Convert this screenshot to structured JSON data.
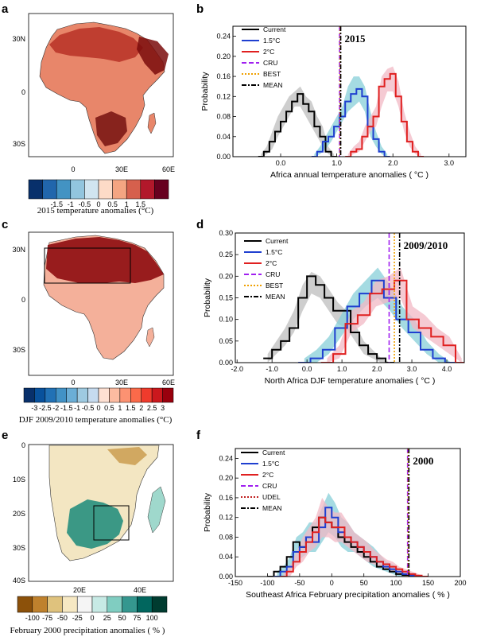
{
  "panels": [
    {
      "letter": "a",
      "lat_ticks": [
        "30N",
        "0",
        "30S"
      ],
      "lon_ticks": [
        "0",
        "30E",
        "60E"
      ],
      "colorbar_ticks": [
        "-1.5",
        "-1",
        "-0.5",
        "0",
        "0.5",
        "1",
        "1.5"
      ],
      "colors": [
        "#08306b",
        "#2166ac",
        "#4393c3",
        "#92c5de",
        "#d1e5f0",
        "#fddbc7",
        "#f4a582",
        "#d6604d",
        "#b2182b",
        "#67001f"
      ],
      "caption": "2015 temperature anomalies (°C)",
      "show_box": false
    },
    {
      "letter": "c",
      "lat_ticks": [
        "30N",
        "0",
        "30S"
      ],
      "lon_ticks": [
        "0",
        "30E",
        "60E"
      ],
      "colorbar_ticks": [
        "-3",
        "-2.5",
        "-2",
        "-1.5",
        "-1",
        "-0.5",
        "0",
        "0.5",
        "1",
        "1.5",
        "2",
        "2.5",
        "3"
      ],
      "colors": [
        "#08306b",
        "#08519c",
        "#2171b5",
        "#4292c6",
        "#6baed6",
        "#9ecae1",
        "#c6dbef",
        "#fee0d2",
        "#fcbba1",
        "#fc9272",
        "#fb6a4a",
        "#ef3b2c",
        "#cb181d",
        "#99000d"
      ],
      "caption": "DJF 2009/2010 temperature anomalies (°C)",
      "show_box": true
    },
    {
      "letter": "e",
      "lat_ticks": [
        "0",
        "10S",
        "20S",
        "30S",
        "40S"
      ],
      "lon_ticks": [
        "20E",
        "40E"
      ],
      "colorbar_ticks": [
        "-100",
        "-75",
        "-50",
        "-25",
        "0",
        "25",
        "50",
        "75",
        "100"
      ],
      "colors": [
        "#8c510a",
        "#bf812d",
        "#dfc27d",
        "#f6e8c3",
        "#f5f5f5",
        "#c7eae5",
        "#80cdc1",
        "#35978f",
        "#01665e",
        "#003c30"
      ],
      "caption": "February 2000 precipitation anomalies ( % )",
      "show_box": true
    }
  ],
  "chart_data": [
    {
      "type": "line",
      "letter": "b",
      "year_label": "2015",
      "ylabel": "Probability",
      "xlabel": "Africa annual temperature anomalies ( °C )",
      "x_ticks": [
        "0.0",
        "1.0",
        "2.0",
        "3.0"
      ],
      "x_tick_values": [
        0,
        1,
        2,
        3
      ],
      "y_ticks": [
        "0.00",
        "0.04",
        "0.08",
        "0.12",
        "0.16",
        "0.20",
        "0.24"
      ],
      "y_tick_values": [
        0,
        0.04,
        0.08,
        0.12,
        0.16,
        0.2,
        0.24
      ],
      "xlim": [
        -0.85,
        3.3
      ],
      "ylim": [
        0,
        0.26
      ],
      "legend": [
        {
          "name": "Current",
          "color": "#000000",
          "dash": "solid"
        },
        {
          "name": "1.5°C",
          "color": "#1f3fd0",
          "dash": "solid"
        },
        {
          "name": "2°C",
          "color": "#e02020",
          "dash": "solid"
        },
        {
          "name": "CRU",
          "color": "#a020f0",
          "dash": "dash"
        },
        {
          "name": "BEST",
          "color": "#f0a000",
          "dash": "dot"
        },
        {
          "name": "MEAN",
          "color": "#000000",
          "dash": "dashdot"
        }
      ],
      "obs_lines": [
        1.05,
        1.06,
        1.07
      ],
      "series": [
        {
          "name": "Current",
          "color": "#000000",
          "x_start": -0.4,
          "bin": 0.1,
          "values": [
            0,
            0.01,
            0.03,
            0.05,
            0.07,
            0.09,
            0.11,
            0.125,
            0.105,
            0.09,
            0.06,
            0.04,
            0.01,
            0
          ]
        },
        {
          "name": "1.5°C",
          "color": "#1f3fd0",
          "x_start": 0.55,
          "bin": 0.1,
          "values": [
            0,
            0.01,
            0.03,
            0.04,
            0.06,
            0.08,
            0.11,
            0.125,
            0.135,
            0.12,
            0.06,
            0.035,
            0.01,
            0
          ]
        },
        {
          "name": "2°C",
          "color": "#e02020",
          "x_start": 1.15,
          "bin": 0.1,
          "values": [
            0,
            0.01,
            0.015,
            0.04,
            0.06,
            0.08,
            0.14,
            0.155,
            0.165,
            0.12,
            0.07,
            0.03,
            0.01,
            0
          ]
        }
      ],
      "shades": [
        {
          "color": "#bdbdbd",
          "x_start": -0.4,
          "bin": 0.1,
          "lo": [
            0,
            0.005,
            0.015,
            0.04,
            0.06,
            0.08,
            0.1,
            0.1,
            0.08,
            0.06,
            0.04,
            0.02,
            0.005,
            0
          ],
          "hi": [
            0.005,
            0.02,
            0.05,
            0.08,
            0.1,
            0.12,
            0.13,
            0.14,
            0.12,
            0.11,
            0.08,
            0.06,
            0.02,
            0.005
          ]
        },
        {
          "color": "#87cfd8",
          "x_start": 0.55,
          "bin": 0.1,
          "lo": [
            0,
            0.005,
            0.015,
            0.03,
            0.05,
            0.07,
            0.09,
            0.1,
            0.11,
            0.09,
            0.04,
            0.02,
            0.005,
            0
          ],
          "hi": [
            0.005,
            0.02,
            0.04,
            0.06,
            0.08,
            0.1,
            0.14,
            0.16,
            0.16,
            0.14,
            0.09,
            0.05,
            0.02,
            0.005
          ]
        },
        {
          "color": "#f2b8c4",
          "x_start": 1.15,
          "bin": 0.1,
          "lo": [
            0,
            0.005,
            0.01,
            0.03,
            0.05,
            0.06,
            0.1,
            0.13,
            0.13,
            0.1,
            0.05,
            0.02,
            0.005,
            0
          ],
          "hi": [
            0.005,
            0.02,
            0.03,
            0.06,
            0.08,
            0.1,
            0.16,
            0.175,
            0.18,
            0.15,
            0.09,
            0.05,
            0.02,
            0.005
          ]
        }
      ]
    },
    {
      "type": "line",
      "letter": "d",
      "year_label": "2009/2010",
      "ylabel": "Probability",
      "xlabel": "North Africa DJF temperature anomalies ( °C )",
      "x_ticks": [
        "-2.0",
        "-1.0",
        "0.0",
        "1.0",
        "2.0",
        "3.0",
        "4.0"
      ],
      "x_tick_values": [
        -2,
        -1,
        0,
        1,
        2,
        3,
        4
      ],
      "y_ticks": [
        "0.00",
        "0.05",
        "0.10",
        "0.15",
        "0.20",
        "0.25",
        "0.30"
      ],
      "y_tick_values": [
        0,
        0.05,
        0.1,
        0.15,
        0.2,
        0.25,
        0.3
      ],
      "xlim": [
        -2.05,
        4.5
      ],
      "ylim": [
        0,
        0.3
      ],
      "legend": [
        {
          "name": "Current",
          "color": "#000000",
          "dash": "solid"
        },
        {
          "name": "1.5°C",
          "color": "#1f3fd0",
          "dash": "solid"
        },
        {
          "name": "2°C",
          "color": "#e02020",
          "dash": "solid"
        },
        {
          "name": "CRU",
          "color": "#a020f0",
          "dash": "dash"
        },
        {
          "name": "BEST",
          "color": "#f0a000",
          "dash": "dot"
        },
        {
          "name": "MEAN",
          "color": "#000000",
          "dash": "dashdot"
        }
      ],
      "obs_lines": [
        2.35,
        2.5,
        2.65
      ],
      "series": [
        {
          "name": "Current",
          "color": "#000000",
          "x_start": -1.25,
          "bin": 0.25,
          "values": [
            0.01,
            0.03,
            0.05,
            0.08,
            0.15,
            0.2,
            0.18,
            0.15,
            0.12,
            0.12,
            0.07,
            0.04,
            0.02,
            0.01,
            0
          ]
        },
        {
          "name": "1.5°C",
          "color": "#1f3fd0",
          "x_start": -0.25,
          "bin": 0.35,
          "values": [
            0,
            0.01,
            0.03,
            0.08,
            0.13,
            0.16,
            0.19,
            0.15,
            0.1,
            0.07,
            0.03,
            0.01,
            0
          ]
        },
        {
          "name": "2°C",
          "color": "#e02020",
          "x_start": 0.4,
          "bin": 0.35,
          "values": [
            0,
            0.02,
            0.09,
            0.11,
            0.16,
            0.17,
            0.19,
            0.1,
            0.08,
            0.06,
            0.04,
            0
          ]
        }
      ],
      "shades": [
        {
          "color": "#bdbdbd",
          "x_start": -1.25,
          "bin": 0.25,
          "lo": [
            0,
            0.02,
            0.04,
            0.07,
            0.12,
            0.16,
            0.15,
            0.12,
            0.09,
            0.08,
            0.05,
            0.02,
            0.01,
            0,
            0
          ],
          "hi": [
            0.02,
            0.05,
            0.08,
            0.12,
            0.18,
            0.21,
            0.2,
            0.17,
            0.14,
            0.12,
            0.09,
            0.05,
            0.03,
            0.01,
            0
          ]
        },
        {
          "color": "#87cfd8",
          "x_start": -0.25,
          "bin": 0.35,
          "lo": [
            0,
            0,
            0.02,
            0.06,
            0.1,
            0.13,
            0.15,
            0.12,
            0.08,
            0.05,
            0.02,
            0,
            0
          ],
          "hi": [
            0.01,
            0.03,
            0.06,
            0.11,
            0.16,
            0.19,
            0.22,
            0.18,
            0.13,
            0.1,
            0.05,
            0.02,
            0
          ]
        },
        {
          "color": "#f2b8c4",
          "x_start": 0.4,
          "bin": 0.35,
          "lo": [
            0,
            0.01,
            0.07,
            0.09,
            0.13,
            0.14,
            0.15,
            0.08,
            0.06,
            0.04,
            0.02,
            0
          ],
          "hi": [
            0.01,
            0.04,
            0.12,
            0.14,
            0.19,
            0.2,
            0.22,
            0.13,
            0.11,
            0.08,
            0.06,
            0.01
          ]
        }
      ]
    },
    {
      "type": "line",
      "letter": "f",
      "year_label": "2000",
      "ylabel": "Probability",
      "xlabel": "Southeast Africa February precipitation anomalies ( % )",
      "x_ticks": [
        "-150",
        "-100",
        "-50",
        "0",
        "50",
        "100",
        "150",
        "200"
      ],
      "x_tick_values": [
        -150,
        -100,
        -50,
        0,
        50,
        100,
        150,
        200
      ],
      "y_ticks": [
        "0.00",
        "0.04",
        "0.08",
        "0.12",
        "0.16",
        "0.20",
        "0.24"
      ],
      "y_tick_values": [
        0,
        0.04,
        0.08,
        0.12,
        0.16,
        0.2,
        0.24
      ],
      "xlim": [
        -150,
        200
      ],
      "ylim": [
        0,
        0.26
      ],
      "legend": [
        {
          "name": "Current",
          "color": "#000000",
          "dash": "solid"
        },
        {
          "name": "1.5°C",
          "color": "#1f3fd0",
          "dash": "solid"
        },
        {
          "name": "2°C",
          "color": "#e02020",
          "dash": "solid"
        },
        {
          "name": "CRU",
          "color": "#a020f0",
          "dash": "dash"
        },
        {
          "name": "UDEL",
          "color": "#c02020",
          "dash": "dot"
        },
        {
          "name": "MEAN",
          "color": "#000000",
          "dash": "dashdot"
        }
      ],
      "obs_lines": [
        118,
        119,
        120
      ],
      "series": [
        {
          "name": "Current",
          "color": "#000000",
          "x_start": -100,
          "bin": 10,
          "values": [
            0,
            0.01,
            0.02,
            0.04,
            0.07,
            0.06,
            0.08,
            0.1,
            0.12,
            0.11,
            0.1,
            0.08,
            0.07,
            0.06,
            0.05,
            0.04,
            0.03,
            0.02,
            0.015,
            0.01,
            0.005,
            0.003,
            0.002,
            0
          ]
        },
        {
          "name": "1.5°C",
          "color": "#1f3fd0",
          "x_start": -90,
          "bin": 10,
          "values": [
            0,
            0.01,
            0.02,
            0.05,
            0.06,
            0.08,
            0.07,
            0.1,
            0.14,
            0.12,
            0.09,
            0.08,
            0.07,
            0.06,
            0.05,
            0.04,
            0.03,
            0.02,
            0.015,
            0.01,
            0.005,
            0.002,
            0
          ]
        },
        {
          "name": "2°C",
          "color": "#e02020",
          "x_start": -80,
          "bin": 10,
          "values": [
            0,
            0.01,
            0.03,
            0.05,
            0.07,
            0.09,
            0.12,
            0.11,
            0.1,
            0.1,
            0.08,
            0.07,
            0.06,
            0.05,
            0.04,
            0.03,
            0.025,
            0.02,
            0.015,
            0.01,
            0.005,
            0.002,
            0
          ]
        }
      ],
      "shades": [
        {
          "color": "#87cfd8",
          "x_start": -90,
          "bin": 10,
          "lo": [
            0,
            0,
            0.01,
            0.03,
            0.04,
            0.05,
            0.05,
            0.07,
            0.09,
            0.08,
            0.06,
            0.05,
            0.05,
            0.04,
            0.03,
            0.02,
            0.015,
            0.01,
            0.005,
            0,
            0,
            0,
            0
          ],
          "hi": [
            0.01,
            0.02,
            0.04,
            0.08,
            0.09,
            0.11,
            0.11,
            0.14,
            0.17,
            0.15,
            0.12,
            0.11,
            0.09,
            0.08,
            0.07,
            0.06,
            0.045,
            0.03,
            0.025,
            0.015,
            0.01,
            0.005,
            0
          ]
        },
        {
          "color": "#f2b8c4",
          "x_start": -80,
          "bin": 10,
          "lo": [
            0,
            0,
            0.02,
            0.03,
            0.05,
            0.06,
            0.08,
            0.08,
            0.07,
            0.07,
            0.06,
            0.05,
            0.04,
            0.03,
            0.025,
            0.02,
            0.015,
            0.01,
            0.005,
            0,
            0,
            0,
            0
          ],
          "hi": [
            0.01,
            0.02,
            0.05,
            0.08,
            0.1,
            0.12,
            0.16,
            0.14,
            0.13,
            0.13,
            0.11,
            0.09,
            0.08,
            0.07,
            0.055,
            0.045,
            0.035,
            0.03,
            0.02,
            0.015,
            0.01,
            0.005,
            0
          ]
        }
      ]
    }
  ]
}
